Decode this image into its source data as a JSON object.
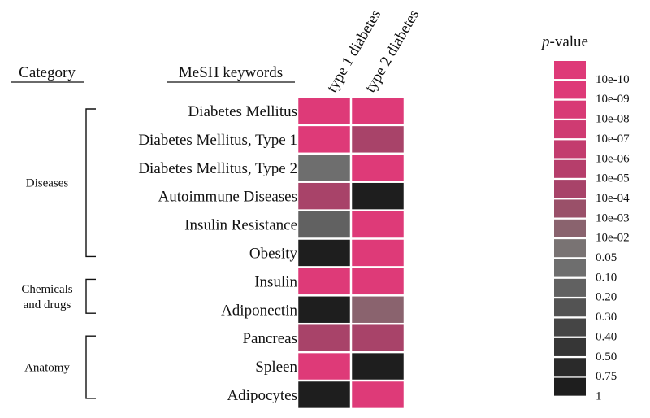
{
  "headers": {
    "category": "Category",
    "keywords": "MeSH keywords"
  },
  "legend": {
    "title_italic": "p",
    "title_rest": "-value",
    "entries": [
      {
        "label": "10e-10",
        "color": "#DE3A78"
      },
      {
        "label": "10e-09",
        "color": "#DE3A78"
      },
      {
        "label": "10e-08",
        "color": "#D83A75"
      },
      {
        "label": "10e-07",
        "color": "#CF3B72"
      },
      {
        "label": "10e-06",
        "color": "#C33C6E"
      },
      {
        "label": "10e-05",
        "color": "#B63E6B"
      },
      {
        "label": "10e-04",
        "color": "#A84369"
      },
      {
        "label": "10e-03",
        "color": "#9A5069"
      },
      {
        "label": "10e-02",
        "color": "#8A636E"
      },
      {
        "label": "0.05",
        "color": "#797373"
      },
      {
        "label": "0.10",
        "color": "#6E6E6E"
      },
      {
        "label": "0.20",
        "color": "#616161"
      },
      {
        "label": "0.30",
        "color": "#535353"
      },
      {
        "label": "0.40",
        "color": "#454545"
      },
      {
        "label": "0.50",
        "color": "#363636"
      },
      {
        "label": "0.75",
        "color": "#2A2A2A"
      },
      {
        "label": "1",
        "color": "#1E1E1E"
      }
    ]
  },
  "chart_data": {
    "type": "heatmap",
    "columns": [
      "type 1 diabetes",
      "type 2 diabetes"
    ],
    "rows": [
      "Diabetes Mellitus",
      "Diabetes Mellitus, Type 1",
      "Diabetes Mellitus, Type 2",
      "Autoimmune Diseases",
      "Insulin Resistance",
      "Obesity",
      "Insulin",
      "Adiponectin",
      "Pancreas",
      "Spleen",
      "Adipocytes"
    ],
    "groups": [
      {
        "lines": [
          "Diseases"
        ],
        "rows": [
          0,
          5
        ]
      },
      {
        "lines": [
          "Chemicals",
          "and drugs"
        ],
        "rows": [
          6,
          7
        ]
      },
      {
        "lines": [
          "Anatomy"
        ],
        "rows": [
          8,
          10
        ]
      }
    ],
    "p_values": [
      [
        "10e-10",
        "10e-10"
      ],
      [
        "10e-10",
        "10e-04"
      ],
      [
        "0.10",
        "10e-10"
      ],
      [
        "10e-04",
        "1"
      ],
      [
        "0.20",
        "10e-10"
      ],
      [
        "1",
        "10e-10"
      ],
      [
        "10e-10",
        "10e-10"
      ],
      [
        "1",
        "10e-02"
      ],
      [
        "10e-04",
        "10e-04"
      ],
      [
        "10e-10",
        "1"
      ],
      [
        "1",
        "10e-10"
      ]
    ]
  }
}
